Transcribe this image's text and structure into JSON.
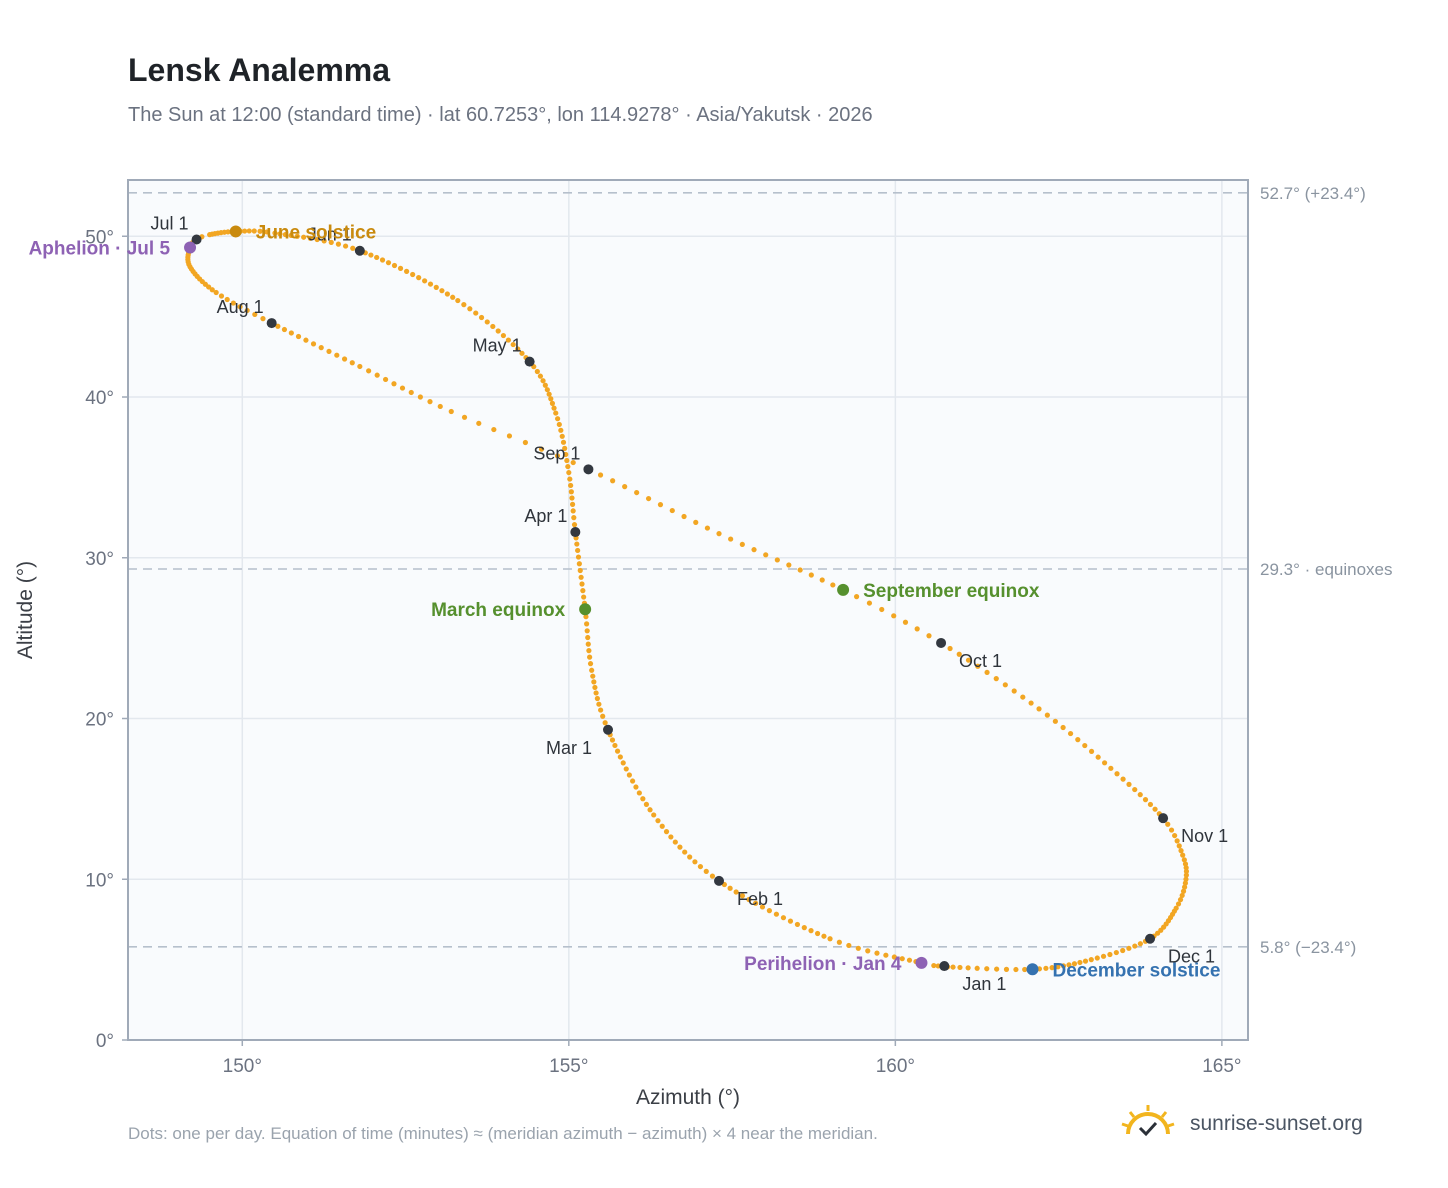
{
  "chart_data": {
    "type": "scatter",
    "title": "Lensk Analemma",
    "subtitle": "The Sun at 12:00 (standard time) · lat 60.7253°, lon 114.9278° · Asia/Yakutsk · 2026",
    "xlabel": "Azimuth (°)",
    "ylabel": "Altitude (°)",
    "xlim": [
      148.25,
      165.4
    ],
    "ylim": [
      0,
      53.5
    ],
    "x_ticks": [
      150,
      155,
      160,
      165
    ],
    "y_ticks": [
      0,
      10,
      20,
      30,
      40,
      50
    ],
    "x_tick_labels": [
      "150°",
      "155°",
      "160°",
      "165°"
    ],
    "y_tick_labels": [
      "0°",
      "10°",
      "20°",
      "30°",
      "40°",
      "50°"
    ],
    "grid": true,
    "reference_lines": [
      {
        "y": 52.7,
        "label": "52.7° (+23.4°)"
      },
      {
        "y": 29.3,
        "label": "29.3° · equinoxes"
      },
      {
        "y": 5.8,
        "label": "5.8° (−23.4°)"
      }
    ],
    "path_color": "#f2a623",
    "month_marker_color": "#333840",
    "analemma_path": [
      {
        "doy": 1,
        "az": 160.7,
        "alt": 4.6
      },
      {
        "doy": 4,
        "az": 160.4,
        "alt": 4.8
      },
      {
        "doy": 15,
        "az": 159.0,
        "alt": 6.3
      },
      {
        "doy": 32,
        "az": 157.3,
        "alt": 9.9
      },
      {
        "doy": 45,
        "az": 156.3,
        "alt": 14.0
      },
      {
        "doy": 60,
        "az": 155.6,
        "alt": 19.3
      },
      {
        "doy": 70,
        "az": 155.35,
        "alt": 23.0
      },
      {
        "doy": 79,
        "az": 155.25,
        "alt": 26.8
      },
      {
        "doy": 91,
        "az": 155.1,
        "alt": 31.6
      },
      {
        "doy": 100,
        "az": 155.0,
        "alt": 35.3
      },
      {
        "doy": 110,
        "az": 154.8,
        "alt": 39.0
      },
      {
        "doy": 121,
        "az": 154.4,
        "alt": 42.2
      },
      {
        "doy": 135,
        "az": 153.3,
        "alt": 46.0
      },
      {
        "doy": 152,
        "az": 151.8,
        "alt": 49.1
      },
      {
        "doy": 165,
        "az": 150.5,
        "alt": 50.2
      },
      {
        "doy": 172,
        "az": 149.9,
        "alt": 50.3
      },
      {
        "doy": 180,
        "az": 149.5,
        "alt": 50.1
      },
      {
        "doy": 182,
        "az": 149.3,
        "alt": 49.8
      },
      {
        "doy": 186,
        "az": 149.2,
        "alt": 49.3
      },
      {
        "doy": 195,
        "az": 149.2,
        "alt": 48.1
      },
      {
        "doy": 205,
        "az": 149.6,
        "alt": 46.5
      },
      {
        "doy": 213,
        "az": 150.45,
        "alt": 44.6
      },
      {
        "doy": 225,
        "az": 151.8,
        "alt": 41.9
      },
      {
        "doy": 235,
        "az": 153.2,
        "alt": 39.1
      },
      {
        "doy": 244,
        "az": 155.3,
        "alt": 35.5
      },
      {
        "doy": 255,
        "az": 157.3,
        "alt": 31.5
      },
      {
        "doy": 266,
        "az": 159.2,
        "alt": 28.0
      },
      {
        "doy": 274,
        "az": 160.7,
        "alt": 24.7
      },
      {
        "doy": 285,
        "az": 162.2,
        "alt": 20.6
      },
      {
        "doy": 295,
        "az": 163.3,
        "alt": 16.9
      },
      {
        "doy": 305,
        "az": 164.1,
        "alt": 13.8
      },
      {
        "doy": 312,
        "az": 164.4,
        "alt": 11.5
      },
      {
        "doy": 318,
        "az": 164.45,
        "alt": 10.0
      },
      {
        "doy": 325,
        "az": 164.3,
        "alt": 8.2
      },
      {
        "doy": 335,
        "az": 163.9,
        "alt": 6.3
      },
      {
        "doy": 345,
        "az": 163.0,
        "alt": 5.0
      },
      {
        "doy": 355,
        "az": 162.1,
        "alt": 4.4
      },
      {
        "doy": 365,
        "az": 160.8,
        "alt": 4.55
      }
    ],
    "month_markers": [
      {
        "label": "Jan 1",
        "az": 160.75,
        "alt": 4.6,
        "anchor": "below-right"
      },
      {
        "label": "Feb 1",
        "az": 157.3,
        "alt": 9.9,
        "anchor": "below-right"
      },
      {
        "label": "Mar 1",
        "az": 155.6,
        "alt": 19.3,
        "anchor": "below-left"
      },
      {
        "label": "Apr 1",
        "az": 155.1,
        "alt": 31.6,
        "anchor": "above-left"
      },
      {
        "label": "May 1",
        "az": 154.4,
        "alt": 42.2,
        "anchor": "above-left"
      },
      {
        "label": "Jun 1",
        "az": 151.8,
        "alt": 49.1,
        "anchor": "above-left"
      },
      {
        "label": "Jul 1",
        "az": 149.3,
        "alt": 49.8,
        "anchor": "above-left"
      },
      {
        "label": "Aug 1",
        "az": 150.45,
        "alt": 44.6,
        "anchor": "above-left"
      },
      {
        "label": "Sep 1",
        "az": 155.3,
        "alt": 35.5,
        "anchor": "above-left"
      },
      {
        "label": "Oct 1",
        "az": 160.7,
        "alt": 24.7,
        "anchor": "below-right"
      },
      {
        "label": "Nov 1",
        "az": 164.1,
        "alt": 13.8,
        "anchor": "below-right"
      },
      {
        "label": "Dec 1",
        "az": 163.9,
        "alt": 6.3,
        "anchor": "below-right"
      }
    ],
    "events": [
      {
        "label": "June solstice",
        "az": 149.9,
        "alt": 50.3,
        "color": "#c98a0e",
        "anchor": "right"
      },
      {
        "label": "Aphelion · Jul 5",
        "az": 149.2,
        "alt": 49.3,
        "color": "#8e62b4",
        "anchor": "left"
      },
      {
        "label": "March equinox",
        "az": 155.25,
        "alt": 26.8,
        "color": "#56902e",
        "anchor": "left"
      },
      {
        "label": "September equinox",
        "az": 159.2,
        "alt": 28.0,
        "color": "#56902e",
        "anchor": "right"
      },
      {
        "label": "Perihelion · Jan 4",
        "az": 160.4,
        "alt": 4.8,
        "color": "#8e62b4",
        "anchor": "left"
      },
      {
        "label": "December solstice",
        "az": 162.1,
        "alt": 4.4,
        "color": "#3572b0",
        "anchor": "right"
      }
    ]
  },
  "footnote": "Dots: one per day. Equation of time (minutes) ≈ (meridian azimuth − azimuth) × 4 near the meridian.",
  "brand": {
    "name": "sunrise-sunset.org",
    "logo_icon": "sun-check-icon",
    "logo_color": "#f2b51e"
  }
}
